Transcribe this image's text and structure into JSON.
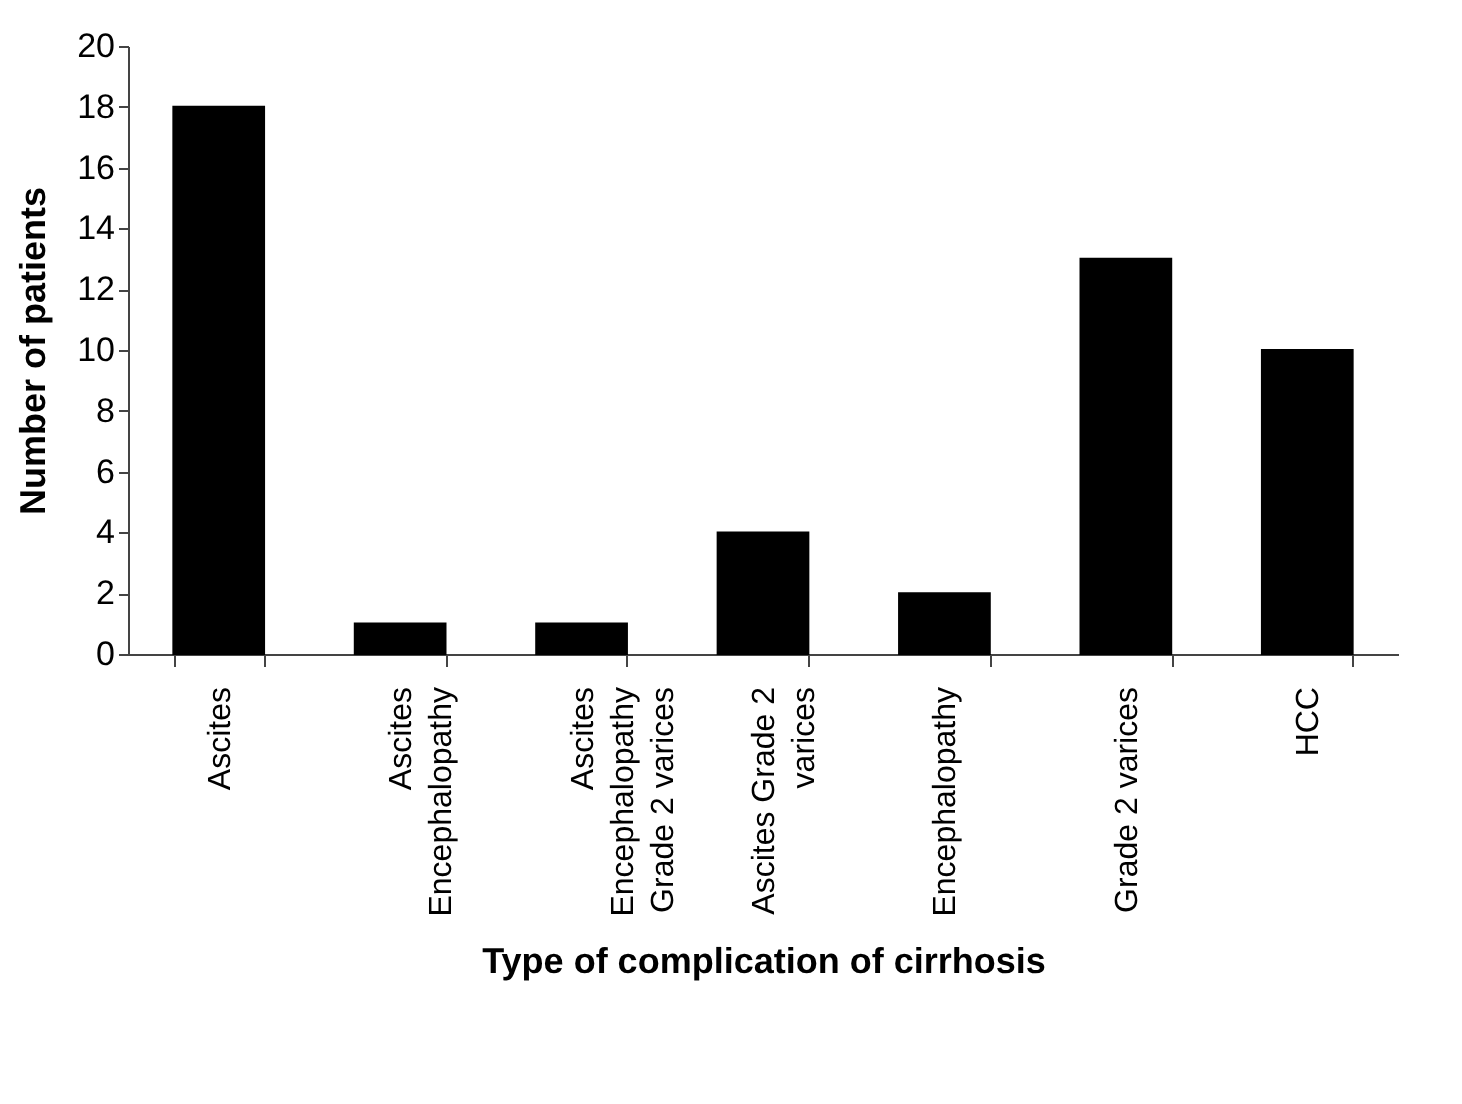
{
  "chart_data": {
    "type": "bar",
    "xlabel": "Type of complication of cirrhosis",
    "ylabel": "Number of patients",
    "categories": [
      "Ascites",
      "Ascites\nEncephalopathy",
      "Ascites\nEncephalopathy\nGrade 2 varices",
      "Ascites Grade 2\nvarices",
      "Encephalopathy",
      "Grade 2 varices",
      "HCC"
    ],
    "values": [
      18,
      1,
      1,
      4,
      2,
      13,
      10
    ],
    "color": "#000000",
    "ylim": [
      0,
      20
    ],
    "yticks": [
      0,
      2,
      4,
      6,
      8,
      10,
      12,
      14,
      16,
      18,
      20
    ],
    "grid": false
  }
}
